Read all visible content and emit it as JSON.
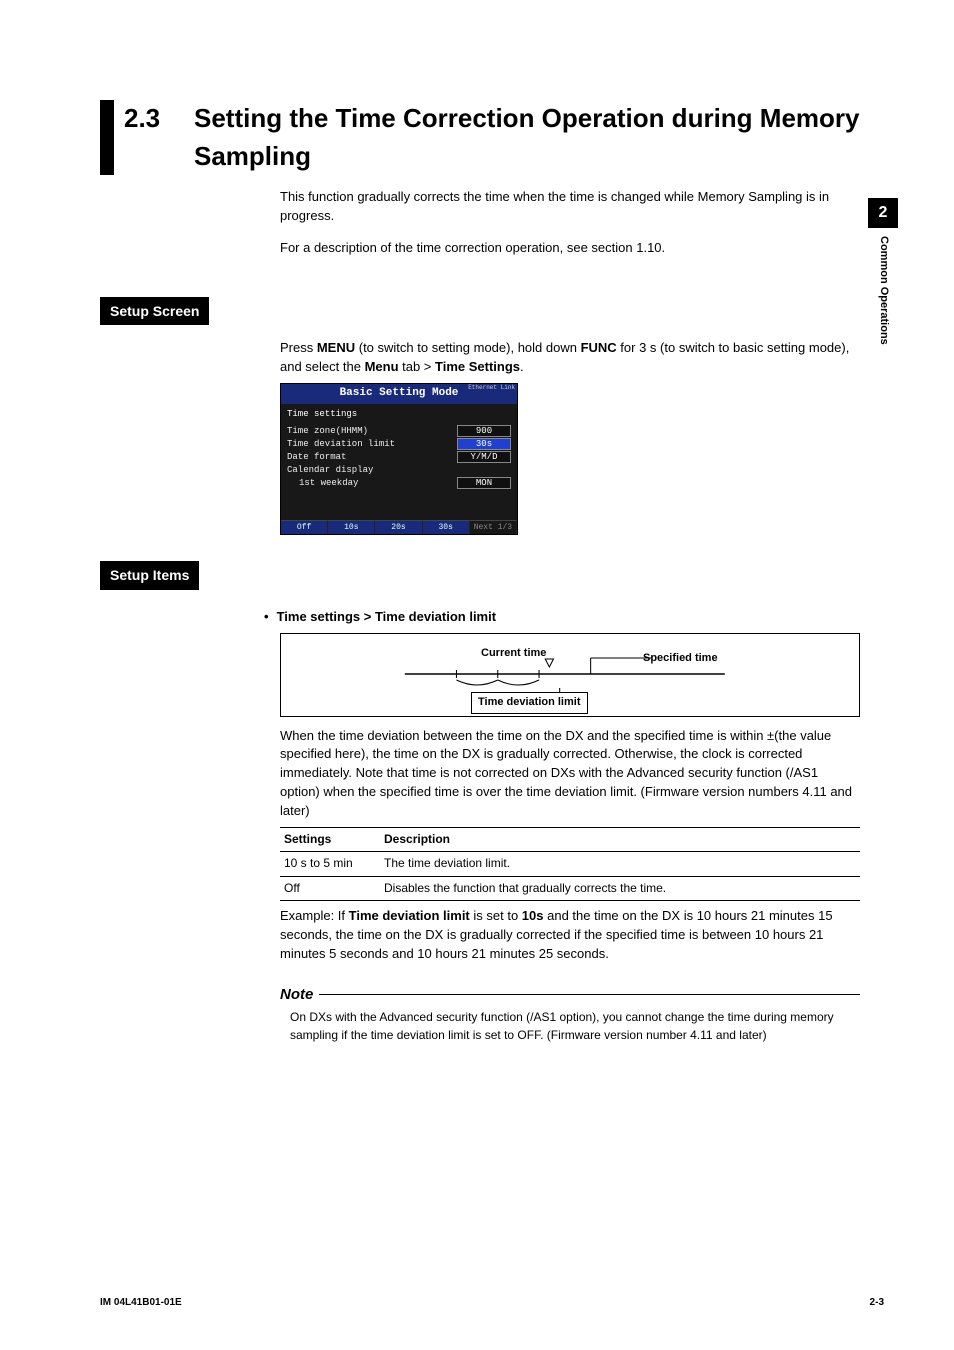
{
  "colors": {
    "black": "#000000",
    "white": "#ffffff",
    "screenshot_bg": "#181818",
    "screenshot_titlebar": "#1a2a7a",
    "highlight_blue": "#2040d0"
  },
  "side_tab": {
    "chapter_number": "2",
    "chapter_title": "Common Operations"
  },
  "section": {
    "number": "2.3",
    "title": "Setting the Time Correction Operation during Memory Sampling",
    "intro_p1": "This function gradually corrects the time when the time is changed while Memory Sampling is in progress.",
    "intro_p2": "For a description of the time correction operation, see section 1.10."
  },
  "setup_screen": {
    "label": "Setup Screen",
    "instruction_pre": "Press ",
    "menu_kw": "MENU",
    "instruction_mid1": " (to switch to setting mode), hold down ",
    "func_kw": "FUNC",
    "instruction_mid2": " for 3 s (to switch to basic setting mode), and select the ",
    "menu_tab_kw": "Menu",
    "instruction_mid3": " tab > ",
    "time_settings_kw": "Time Settings",
    "instruction_end": "."
  },
  "screenshot": {
    "title": "Basic Setting Mode",
    "eth_label": "Ethernet\nLink",
    "subtitle": "Time settings",
    "rows": [
      {
        "label": "Time zone(HHMM)",
        "value": "900",
        "highlight": false,
        "indent": false
      },
      {
        "label": "Time deviation limit",
        "value": "30s",
        "highlight": true,
        "indent": false
      },
      {
        "label": "Date format",
        "value": "Y/M/D",
        "highlight": false,
        "indent": false
      },
      {
        "label": "Calendar display",
        "value": "",
        "highlight": false,
        "indent": false
      },
      {
        "label": "1st weekday",
        "value": "MON",
        "highlight": false,
        "indent": true
      }
    ],
    "softkeys": [
      "Off",
      "10s",
      "20s",
      "30s",
      "Next 1/3"
    ]
  },
  "setup_items": {
    "label": "Setup Items",
    "bullet_title": "Time settings > Time deviation limit",
    "diagram": {
      "current_time": "Current time",
      "specified_time": "Specified time",
      "deviation_box": "Time deviation limit"
    },
    "explain": "When the time deviation between the time on the DX and the specified time is within ±(the value specified here), the time on the DX is gradually corrected. Otherwise, the clock is corrected immediately. Note that time is not corrected on DXs with the Advanced security function (/AS1 option) when the specified time is over the time deviation limit. (Firmware version numbers 4.11 and later)",
    "table": {
      "headers": [
        "Settings",
        "Description"
      ],
      "rows": [
        [
          "10 s to 5 min",
          "The time deviation limit."
        ],
        [
          "Off",
          "Disables the function that gradually corrects the time."
        ]
      ]
    },
    "example_pre": "Example:   If ",
    "example_kw1": "Time deviation limit",
    "example_mid": " is set to ",
    "example_kw2": "10s",
    "example_end": " and the time on the DX is 10 hours 21 minutes 15 seconds, the time on the DX is gradually corrected if the specified time is between 10 hours 21 minutes 5 seconds and 10 hours 21 minutes 25 seconds."
  },
  "note": {
    "heading": "Note",
    "body": "On DXs with the Advanced security function (/AS1 option), you cannot change the time during memory sampling if the time deviation limit is set to OFF. (Firmware version number 4.11 and later)"
  },
  "footer": {
    "left": "IM 04L41B01-01E",
    "right": "2-3"
  }
}
